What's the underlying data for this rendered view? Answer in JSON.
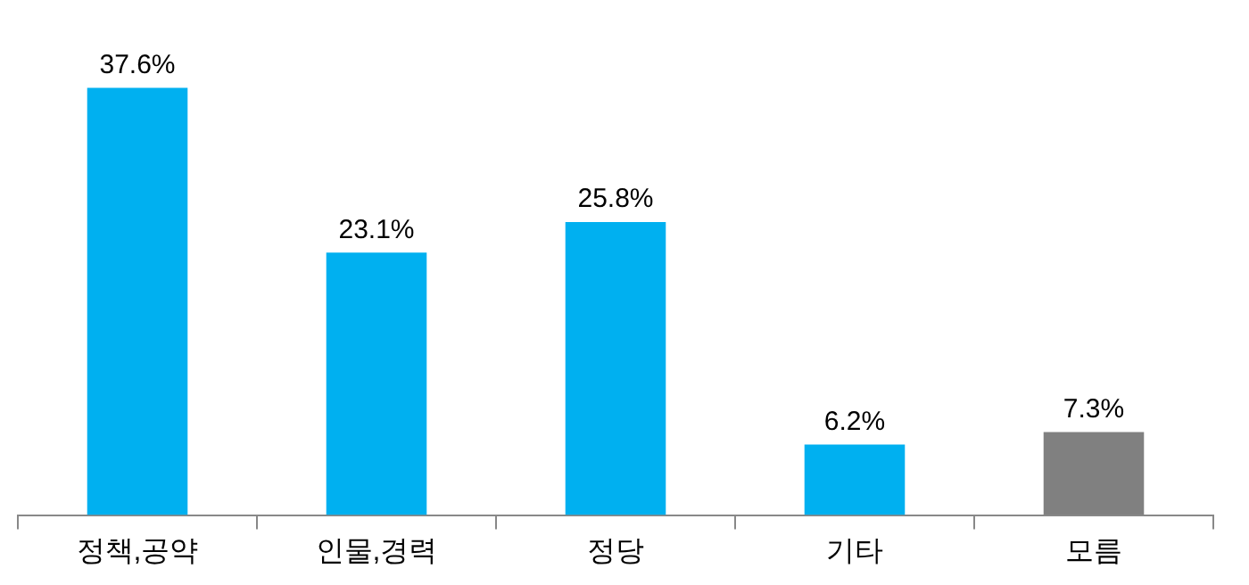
{
  "chart_data": {
    "type": "bar",
    "categories": [
      "정책,공약",
      "인물,경력",
      "정당",
      "기타",
      "모름"
    ],
    "values": [
      37.6,
      23.1,
      25.8,
      6.2,
      7.3
    ],
    "colors": [
      "#00b0f0",
      "#00b0f0",
      "#00b0f0",
      "#00b0f0",
      "#808080"
    ],
    "value_labels": [
      "37.6%",
      "23.1%",
      "25.8%",
      "6.2%",
      "7.3%"
    ],
    "grid": false,
    "legend": false
  }
}
